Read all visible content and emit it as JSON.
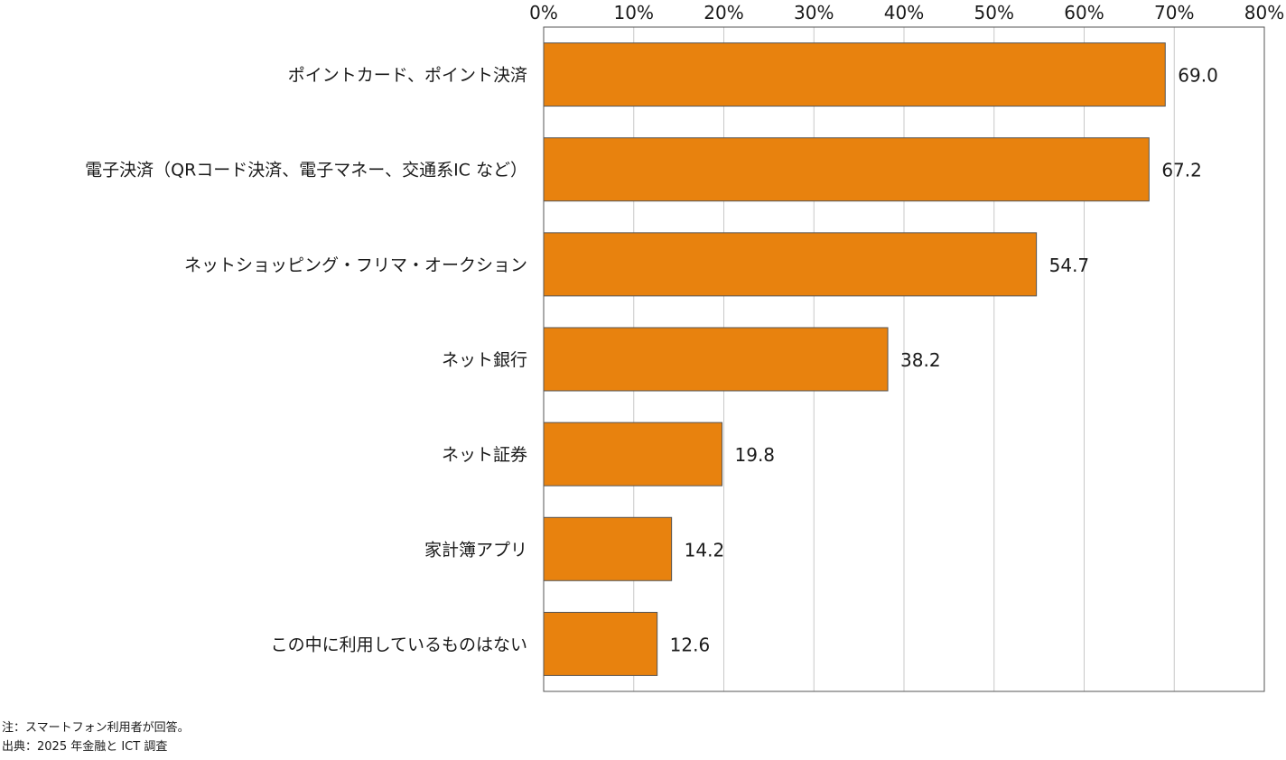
{
  "chart_data": {
    "type": "bar",
    "orientation": "horizontal",
    "categories": [
      "ポイントカード、ポイント決済",
      "電子決済（QRコード決済、電子マネー、交通系IC など）",
      "ネットショッピング・フリマ・オークション",
      "ネット銀行",
      "ネット証券",
      "家計簿アプリ",
      "この中に利用しているものはない"
    ],
    "values": [
      69.0,
      67.2,
      54.7,
      38.2,
      19.8,
      14.2,
      12.6
    ],
    "value_labels": [
      "69.0",
      "67.2",
      "54.7",
      "38.2",
      "19.8",
      "14.2",
      "12.6"
    ],
    "xlim": [
      0,
      80
    ],
    "x_ticks": [
      0,
      10,
      20,
      30,
      40,
      50,
      60,
      70,
      80
    ],
    "x_tick_labels": [
      "0%",
      "10%",
      "20%",
      "30%",
      "40%",
      "50%",
      "60%",
      "70%",
      "80%"
    ],
    "x_axis_position": "top",
    "grid": true,
    "legend": "none",
    "bar_color": "#E8820E",
    "bar_edge_color": "#555555",
    "grid_color": "#c8c8c8",
    "title": "",
    "xlabel": "",
    "ylabel": ""
  },
  "notes": {
    "note": "注：スマートフォン利用者が回答。",
    "source": "出典：2025 年金融と ICT 調査"
  }
}
